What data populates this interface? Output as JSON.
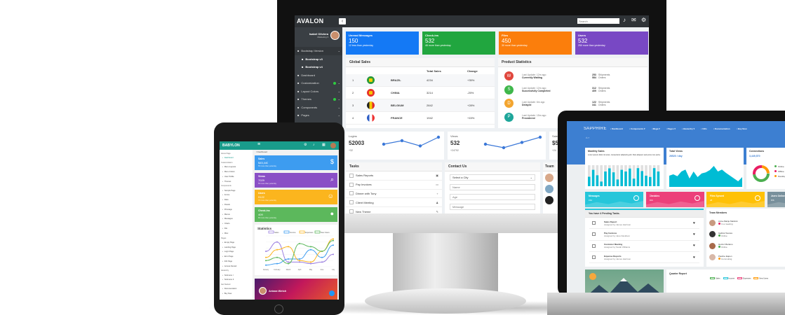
{
  "monitor": {
    "brand": "AVALON",
    "search_placeholder": "Search",
    "user": {
      "name": "Isabel Oliviera",
      "role": "Marketing ▾"
    },
    "sidebar": [
      "Bootstrap Version",
      "Bootstrap v3",
      "Bootstrap v4",
      "Dashboard",
      "Customization",
      "Layout Colors",
      "Themes",
      "Components",
      "Pages"
    ],
    "stats": [
      {
        "title": "Unread Messages",
        "value": "150",
        "sub": "12 less than yesterday",
        "color": "#1479f5"
      },
      {
        "title": "Check-ins",
        "value": "532",
        "sub": "46 more than yesterday",
        "color": "#21a63f"
      },
      {
        "title": "Files",
        "value": "450",
        "sub": "30 more than yesterday",
        "color": "#fb7e0c"
      },
      {
        "title": "Users",
        "value": "532",
        "sub": "250 more than yesterday",
        "color": "#7848c4"
      }
    ],
    "global_sales": {
      "title": "Global Sales",
      "headers": [
        "Total Sales",
        "Change"
      ],
      "rows": [
        {
          "rank": "1",
          "country": "BRAZIL",
          "sales": "4234",
          "change": "+35%",
          "flag": [
            "#2a9a3a",
            "#f5d000"
          ]
        },
        {
          "rank": "2",
          "country": "CHINA",
          "sales": "3214",
          "change": "-25%",
          "flag": [
            "#e8312a",
            "#f5c400"
          ]
        },
        {
          "rank": "3",
          "country": "BELGIUM",
          "sales": "2842",
          "change": "+28%",
          "flag": [
            "#222",
            "#f3c900",
            "#e22b2b"
          ]
        },
        {
          "rank": "4",
          "country": "FRANCE",
          "sales": "1942",
          "change": "+15%",
          "flag": [
            "#2c5cc5",
            "#fff",
            "#e33"
          ]
        }
      ]
    },
    "product_stats": {
      "title": "Product Statistics",
      "items": [
        {
          "letter": "W",
          "color": "#e0463c",
          "update": "Last Update: 12m ago",
          "status": "Currently Waiting",
          "shipments": "253",
          "orders": "584"
        },
        {
          "letter": "S",
          "color": "#3fb74b",
          "update": "Last Update: 12m ago",
          "status": "Successfully Completed",
          "shipments": "312",
          "orders": "409"
        },
        {
          "letter": "D",
          "color": "#f3a52f",
          "update": "Last Update: 6m ago",
          "status": "Delayed",
          "shipments": "122",
          "orders": "341"
        },
        {
          "letter": "P",
          "color": "#1ea69a",
          "update": "Last Update: 15m ago",
          "status": "Preordered",
          "shipments": "",
          "orders": ""
        }
      ],
      "shipments_label": "Shipments",
      "orders_label": "Orders"
    },
    "mini": [
      {
        "label": "Logins",
        "value": "52003",
        "sub": "+32",
        "points": [
          3,
          4,
          2.5,
          5
        ]
      },
      {
        "label": "Views",
        "value": "532",
        "sub": "+24792",
        "points": [
          3,
          2,
          3.5,
          5
        ]
      },
      {
        "label": "Sales",
        "value": "$5",
        "sub": "+24",
        "points": []
      }
    ],
    "tasks": {
      "title": "Tasks",
      "items": [
        "Sales Reports",
        "Pay Invoices",
        "Dinner with Tony",
        "Client Meeting",
        "New Theme"
      ]
    },
    "contact": {
      "title": "Contact Us",
      "city": "Select a City",
      "name": "Name",
      "age": "Age",
      "message": "Message"
    },
    "team_title": "Team"
  },
  "tablet": {
    "brand": "BABYLON",
    "breadcrumb": "/ Dashboard",
    "sidebar": [
      {
        "h": "Home Page"
      },
      {
        "i": "Dashboard",
        "active": true
      },
      {
        "h": "Customization"
      },
      {
        "i": "Menu Layouts"
      },
      {
        "i": "Menu Colors"
      },
      {
        "i": "User Profile"
      },
      {
        "i": "Themes"
      },
      {
        "h": "Components"
      },
      {
        "i": "Sample Page"
      },
      {
        "i": "Forms"
      },
      {
        "i": "Data"
      },
      {
        "i": "Panels"
      },
      {
        "i": "Pricetags"
      },
      {
        "i": "Menus"
      },
      {
        "i": "Messages"
      },
      {
        "i": "Charts"
      },
      {
        "i": "File"
      },
      {
        "i": "Misc"
      },
      {
        "h": "Pages"
      },
      {
        "i": "Empty Page"
      },
      {
        "i": "Landing Page"
      },
      {
        "i": "Login Page"
      },
      {
        "i": "Error Page"
      },
      {
        "i": "404 Page"
      },
      {
        "i": "Access Denied"
      },
      {
        "h": "Hierarchy"
      },
      {
        "i": "Submenu I"
      },
      {
        "i": "Submenu II"
      },
      {
        "h": "Get Started"
      },
      {
        "i": "Documentation"
      },
      {
        "i": "Buy Now"
      }
    ],
    "cards": [
      {
        "title": "Sales",
        "value": "$45,440",
        "sub": "5% more than yesterday",
        "color": "#3d9cf0",
        "icon": "$"
      },
      {
        "title": "Views",
        "value": "7029",
        "sub": "5% more than yesterday",
        "color": "#8a4fc6",
        "icon": "⌕"
      },
      {
        "title": "Users",
        "value": "9122",
        "sub": "7% more than yesterday",
        "color": "#fbb51e",
        "icon": "☺"
      },
      {
        "title": "Check-ins",
        "value": "409",
        "sub": "8% more than yesterday",
        "color": "#5cb85c",
        "icon": "●"
      }
    ],
    "statistics": {
      "title": "Statistics",
      "legend": [
        "Sales",
        "Income",
        "Expenses",
        "New Users"
      ],
      "colors": [
        "#9b7fe0",
        "#3d9cf0",
        "#fbb51e",
        "#5cb85c"
      ],
      "months": [
        "January",
        "February",
        "March",
        "April",
        "May",
        "June",
        "July"
      ],
      "series": [
        [
          50,
          80,
          15,
          15,
          10,
          15,
          40
        ],
        [
          5,
          10,
          25,
          25,
          55,
          30,
          70
        ],
        [
          30,
          55,
          65,
          20,
          15,
          50,
          90
        ],
        [
          20,
          30,
          10,
          75,
          65,
          50,
          85
        ]
      ]
    },
    "profile": "Ariana Welch"
  },
  "laptop": {
    "brand": "SAPPHIRE",
    "nav": [
      "Dashboard",
      "Components ▾",
      "Mega ▾",
      "Pages ▾",
      "Hierarchy ▾",
      "Utils",
      "Documentation",
      "Buy Now"
    ],
    "monthly": {
      "title": "Monthly Sales",
      "desc": "Lorem ipsum dolor sit amet, consectetur adipiscing elit. Duis aliquam sed purus non porta.",
      "bars": [
        45,
        78,
        52,
        22,
        70,
        85,
        66,
        32,
        78,
        70,
        84,
        36,
        86,
        72,
        50,
        44,
        86,
        70
      ]
    },
    "views": {
      "title": "Total Views",
      "value": "26520 / day",
      "area": [
        40,
        45,
        38,
        55,
        62,
        30,
        55,
        35,
        48,
        52,
        60,
        75,
        55,
        62,
        50,
        40,
        30,
        20,
        35
      ]
    },
    "connections": {
      "title": "Connections",
      "value": "3,449,570",
      "legend": [
        "Online",
        "Offline",
        "Pending"
      ],
      "colors": [
        "#4caf50",
        "#e91e63",
        "#ff9800"
      ]
    },
    "tiles": [
      {
        "title": "Messages",
        "value": "152",
        "color": "#26c6da"
      },
      {
        "title": "Checkins",
        "value": "500",
        "color": "#ec407a"
      },
      {
        "title": "Files Synced",
        "value": "28",
        "color": "#ffc107"
      },
      {
        "title": "Users Online",
        "value": "256",
        "color": "#78909c"
      }
    ],
    "pending": {
      "title": "You have 4 Pending Tasks.",
      "items": [
        {
          "t": "Sales Report",
          "a": "Assigned by James Harrison"
        },
        {
          "t": "Pay Invoices",
          "a": "Assigned by Jane Davidson"
        },
        {
          "t": "Customer Meeting",
          "a": "Assigned by Sarah Williams"
        },
        {
          "t": "Expense Reports",
          "a": "Assigned by James Harrison"
        }
      ]
    },
    "team": {
      "title": "Team Members",
      "items": [
        {
          "n": "Anne-Marije Markink",
          "s": "In a meeting",
          "c": "#e91e63"
        },
        {
          "n": "Gabriel Soares",
          "s": "Online",
          "c": "#4caf50"
        },
        {
          "n": "Hector Mariano",
          "s": "Online",
          "c": "#4caf50"
        },
        {
          "n": "Pauline Eapen",
          "s": "Commuting",
          "c": "#ff9800"
        }
      ]
    },
    "quarter": {
      "title": "Quarter Report",
      "legend": [
        "Sales",
        "Income",
        "Expenses",
        "New Users"
      ]
    }
  }
}
